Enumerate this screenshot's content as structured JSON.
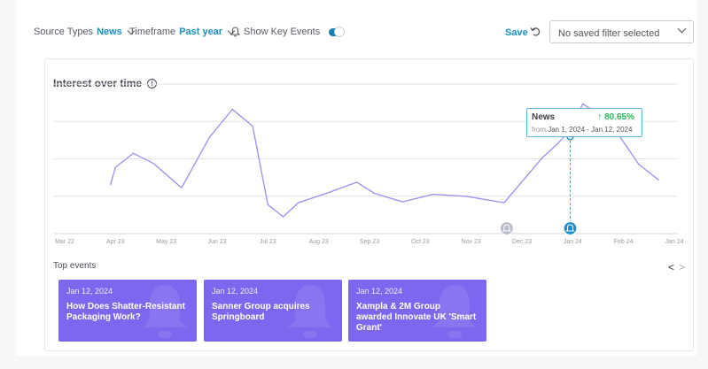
{
  "toolbar": {
    "source_types_label": "Source Types",
    "source_types_value": "News",
    "timeframe_label": "Timeframe",
    "timeframe_value": "Past year",
    "key_events_label": "Show Key Events",
    "key_events_on": true,
    "save_label": "Save",
    "saved_filter_placeholder": "No saved filter selected"
  },
  "card": {
    "title": "Interest over time"
  },
  "chart_data": {
    "type": "line",
    "x_ticks": [
      "Mar 22",
      "Apr 23",
      "May 23",
      "Jun 23",
      "Jul 23",
      "Aug 23",
      "Sep 23",
      "Oct 23",
      "Nov 23",
      "Dec 23",
      "Jan 24",
      "Feb 24",
      "Jan 24"
    ],
    "series": [
      {
        "name": "News",
        "color": "#9b8ff0",
        "points": [
          [
            0.9,
            52
          ],
          [
            1.0,
            71
          ],
          [
            1.35,
            86
          ],
          [
            1.75,
            75
          ],
          [
            2.3,
            49
          ],
          [
            2.85,
            103
          ],
          [
            3.3,
            133
          ],
          [
            3.7,
            115
          ],
          [
            4.0,
            31
          ],
          [
            4.3,
            18
          ],
          [
            4.6,
            33
          ],
          [
            5.2,
            44
          ],
          [
            5.75,
            55
          ],
          [
            6.1,
            43
          ],
          [
            6.65,
            34
          ],
          [
            7.25,
            42
          ],
          [
            7.9,
            40
          ],
          [
            8.65,
            33
          ],
          [
            9.4,
            81
          ],
          [
            9.7,
            96
          ],
          [
            9.95,
            111
          ],
          [
            10.2,
            139
          ],
          [
            10.75,
            118
          ],
          [
            11.3,
            74
          ],
          [
            11.7,
            57
          ]
        ]
      }
    ],
    "ylim": [
      0,
      160
    ],
    "grid": true,
    "key_events": [
      {
        "x": 8.7,
        "style": "grey-bell"
      },
      {
        "x": 9.95,
        "style": "blue-bell"
      }
    ],
    "highlight_x": 9.95,
    "tooltip": {
      "series": "News",
      "change": "80.65%",
      "from_label": "from",
      "range": "Jan 1, 2024 - Jan 12, 2024"
    }
  },
  "top_events": {
    "title": "Top events",
    "prev": "<",
    "next": ">",
    "items": [
      {
        "date": "Jan 12, 2024",
        "title": "How Does Shatter-Resistant Packaging Work?"
      },
      {
        "date": "Jan 12, 2024",
        "title": "Sanner Group acquires Springboard"
      },
      {
        "date": "Jan 12, 2024",
        "title": "Xampla & 2M Group awarded Innovate UK 'Smart Grant'"
      }
    ]
  }
}
